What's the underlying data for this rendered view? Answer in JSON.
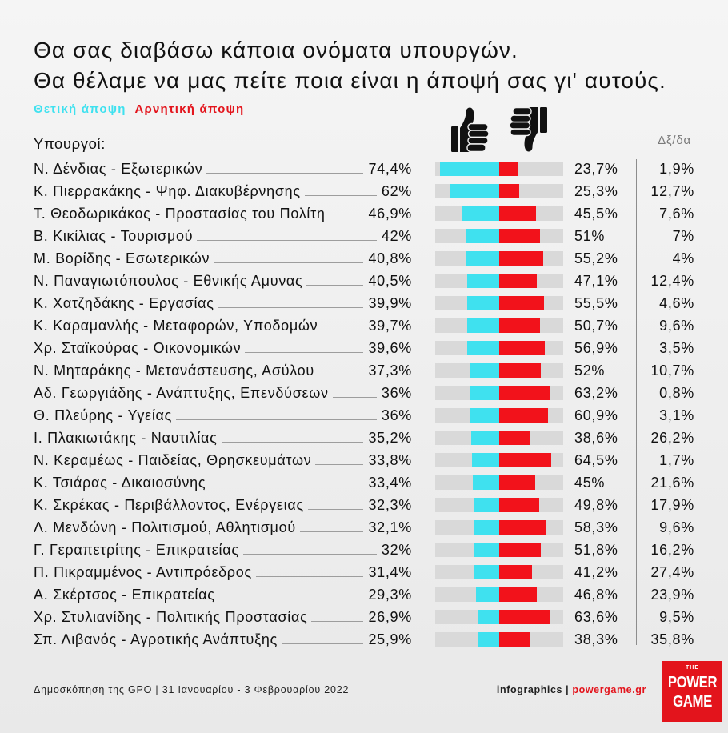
{
  "chart_data": {
    "type": "bar",
    "orientation": "horizontal",
    "layout": "diverging",
    "title": [
      "Θα σας διαβάσω κάποια ονόματα υπουργών.",
      "Θα θέλαμε να μας πείτε ποια είναι η άποψή σας γι' αυτούς."
    ],
    "category_header": "Υπουργοί:",
    "unit": "%",
    "categories": [
      "Ν. Δένδιας - Εξωτερικών",
      "Κ. Πιερρακάκης - Ψηφ. Διακυβέρνησης",
      "Τ. Θεοδωρικάκος - Προστασίας του Πολίτη",
      "Β. Κικίλιας - Τουρισμού",
      "Μ. Βορίδης - Εσωτερικών",
      "Ν. Παναγιωτόπουλος - Εθνικής Αμυνας",
      "Κ. Χατζηδάκης - Εργασίας",
      "Κ. Καραμανλής - Μεταφορών, Υποδομών",
      "Χρ. Σταϊκούρας - Οικονομικών",
      "Ν. Μηταράκης - Μετανάστευσης, Ασύλου",
      "Αδ. Γεωργιάδης - Ανάπτυξης, Επενδύσεων",
      "Θ. Πλεύρης - Υγείας",
      "Ι. Πλακιωτάκης - Ναυτιλίας",
      "Ν. Κεραμέως - Παιδείας, Θρησκευμάτων",
      "Κ. Τσιάρας - Δικαιοσύνης",
      "Κ. Σκρέκας - Περιβάλλοντος, Ενέργειας",
      "Λ. Μενδώνη - Πολιτισμού, Αθλητισμού",
      "Γ. Γεραπετρίτης - Επικρατείας",
      "Π. Πικραμμένος - Αντιπρόεδρος",
      "Α. Σκέρτσος - Επικρατείας",
      "Χρ. Στυλιανίδης - Πολιτικής Προστασίας",
      "Σπ. Λιβανός - Αγροτικής Ανάπτυξης"
    ],
    "series": [
      {
        "name": "Θετική άποψη",
        "color": "#3fe1ef",
        "values": [
          74.4,
          62,
          46.9,
          42,
          40.8,
          40.5,
          39.9,
          39.7,
          39.6,
          37.3,
          36,
          36,
          35.2,
          33.8,
          33.4,
          32.3,
          32.1,
          32,
          31.4,
          29.3,
          26.9,
          25.9
        ]
      },
      {
        "name": "Αρνητική άποψη",
        "color": "#f2121b",
        "values": [
          23.7,
          25.3,
          45.5,
          51,
          55.2,
          47.1,
          55.5,
          50.7,
          56.9,
          52,
          63.2,
          60.9,
          38.6,
          64.5,
          45,
          49.8,
          58.3,
          51.8,
          41.2,
          46.8,
          63.6,
          38.3
        ]
      },
      {
        "name": "Δξ/δα",
        "values": [
          1.9,
          12.7,
          7.6,
          7,
          4,
          12.4,
          4.6,
          9.6,
          3.5,
          10.7,
          0.8,
          3.1,
          26.2,
          1.7,
          21.6,
          17.9,
          9.6,
          16.2,
          27.4,
          23.9,
          9.5,
          35.8
        ]
      }
    ],
    "xlim": [
      -80,
      80
    ],
    "grid": false,
    "legend_position": "top-left"
  },
  "icons": {
    "positive": "thumbs-up-icon",
    "negative": "thumbs-down-icon"
  },
  "colors": {
    "track": "#d9d9d9",
    "brand": "#e3141c",
    "legend_positive": "#3fe1ef",
    "legend_negative": "#e3141c"
  },
  "footer": {
    "source": "Δημοσκόπηση της GPO | 31 Ιανουαρίου - 3 Φεβρουαρίου 2022",
    "credit_prefix": "infographics | ",
    "credit_site": "powergame.gr"
  },
  "logo": {
    "top": "THE",
    "line1": "POWER",
    "line2": "GAME"
  }
}
